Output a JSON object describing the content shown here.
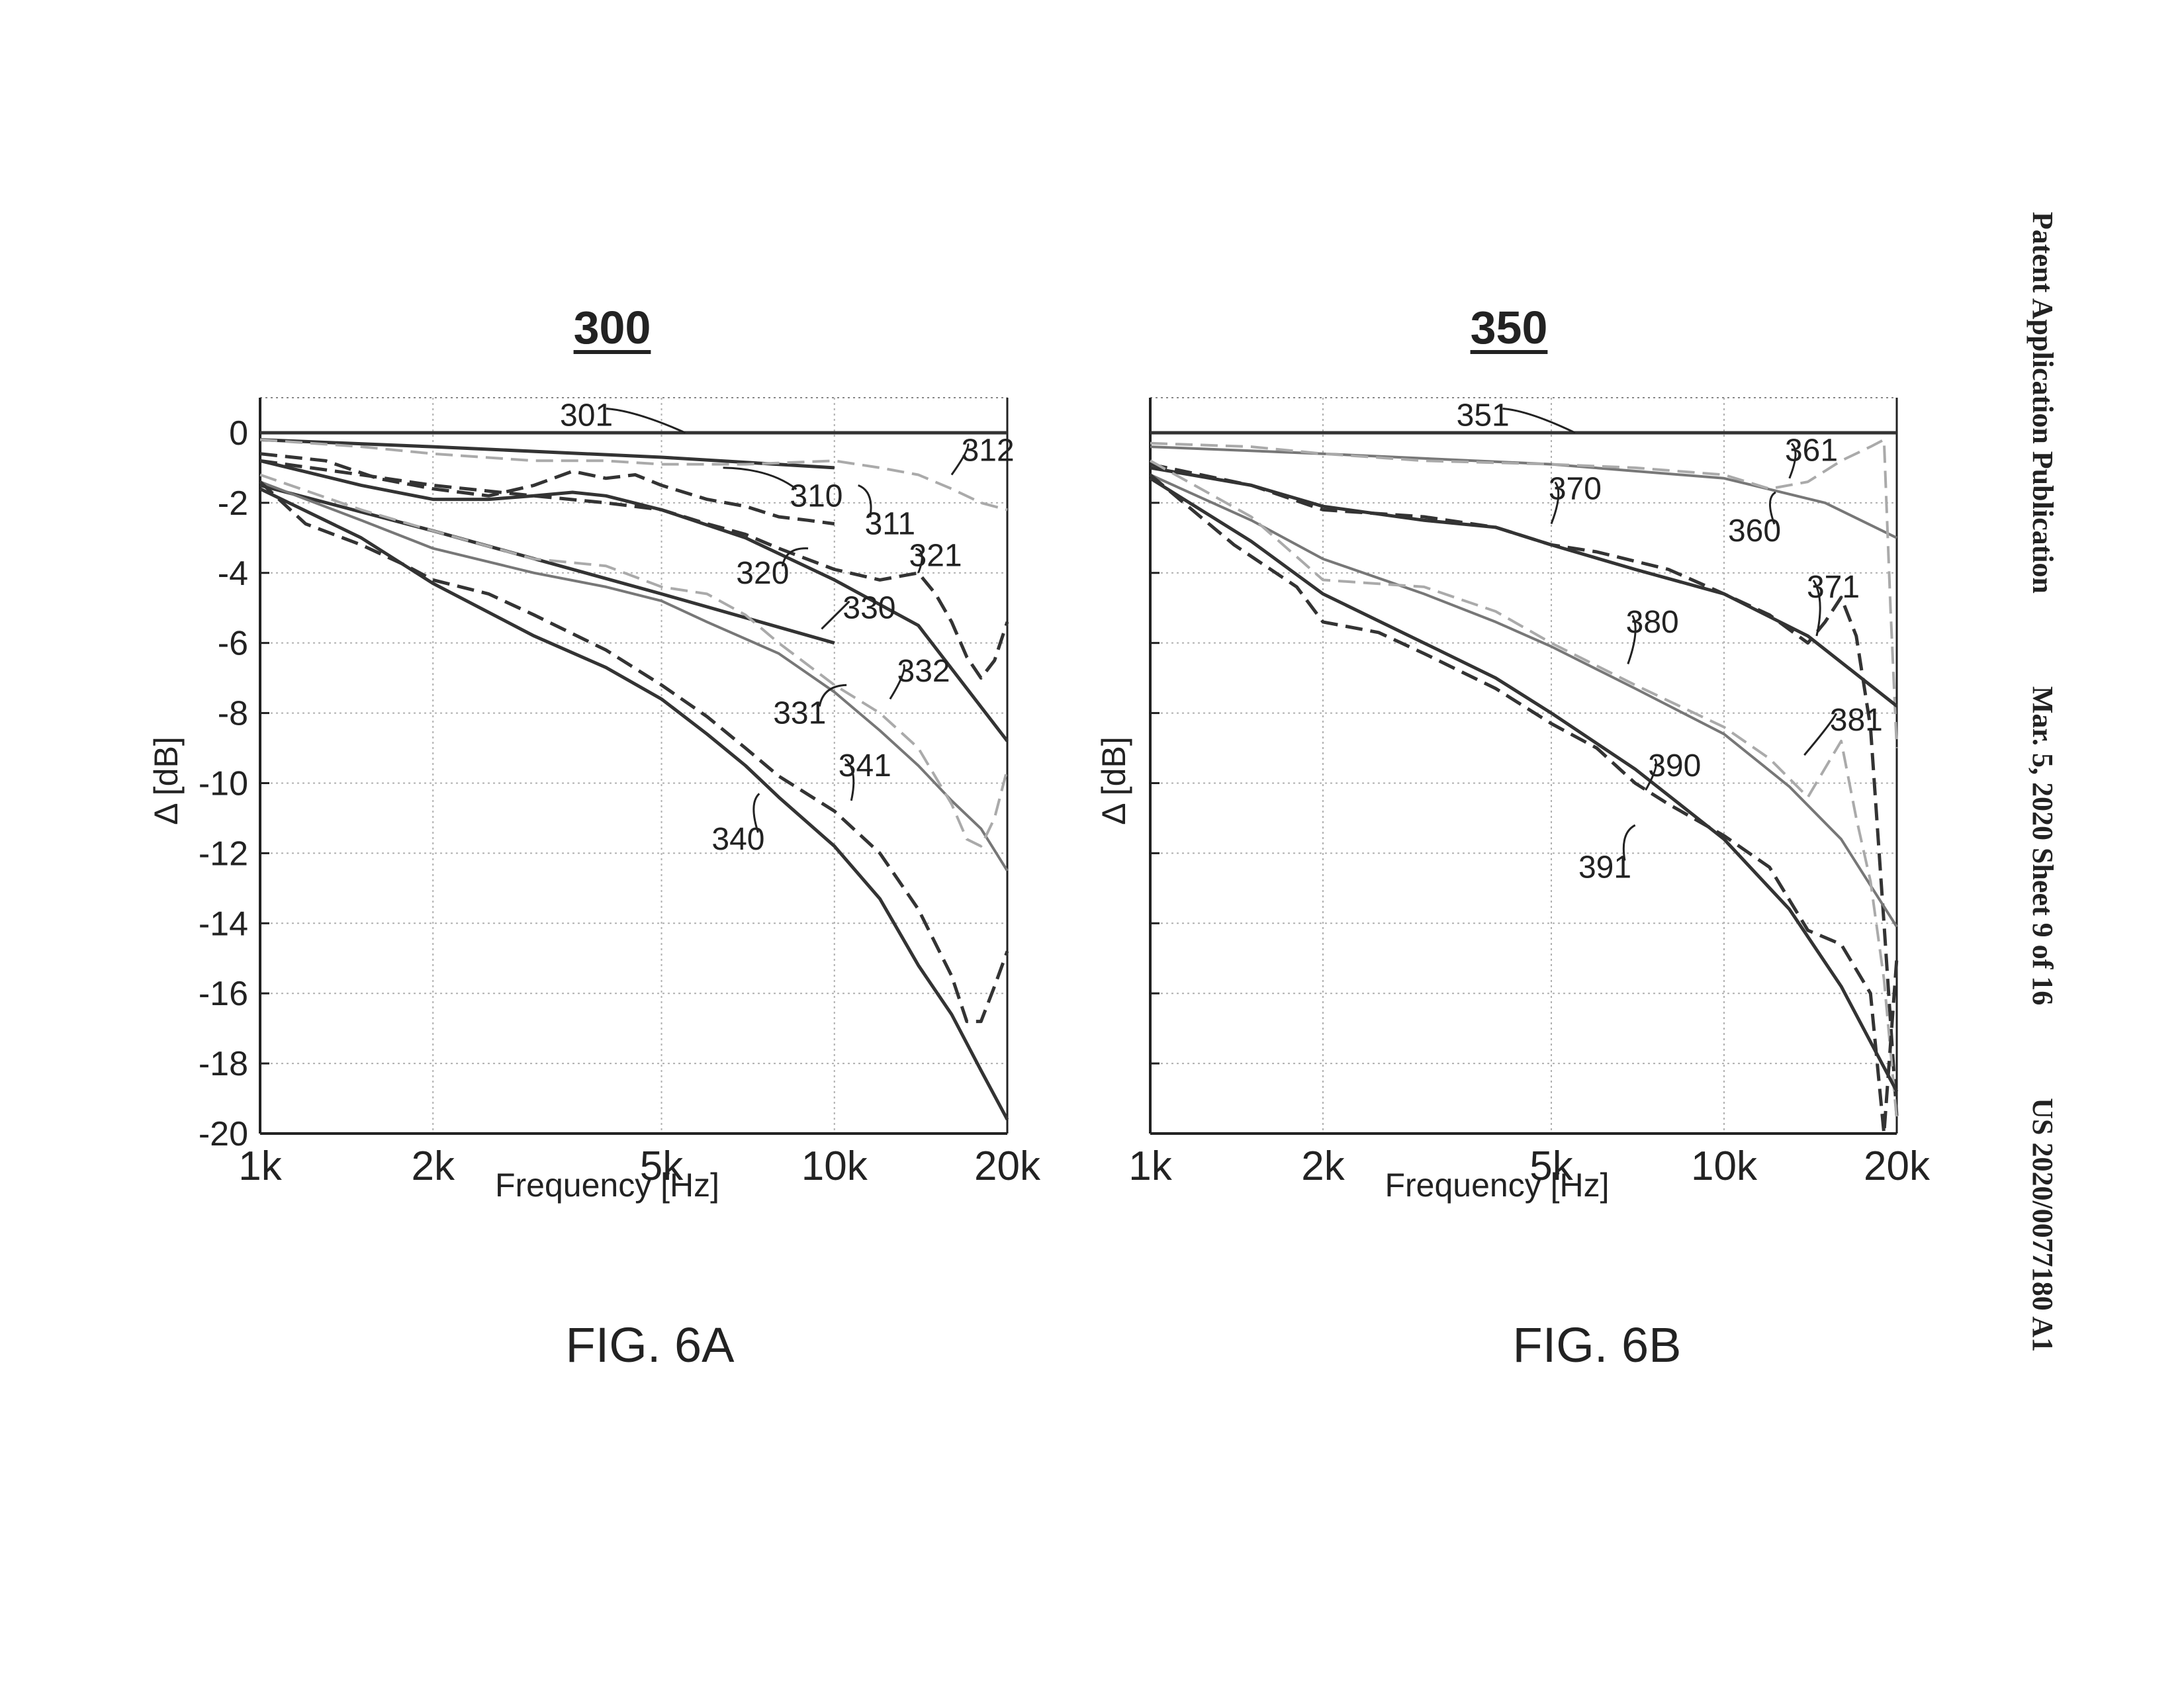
{
  "header": {
    "publication": "Patent Application Publication",
    "date_sheet": "Mar. 5, 2020  Sheet 9 of 16",
    "number": "US 2020/0077180 A1"
  },
  "figures": [
    {
      "number": "300",
      "caption": "FIG. 6A"
    },
    {
      "number": "350",
      "caption": "FIG. 6B"
    }
  ],
  "colors": {
    "dark": "#333333",
    "mid": "#777777",
    "light": "#aaaaaa",
    "grid": "#b0b0b0"
  },
  "chart_data": [
    {
      "type": "line",
      "figure": "300",
      "xlabel": "Frequency [Hz]",
      "ylabel": "Δ [dB]",
      "xscale": "log",
      "xlim": [
        1000,
        20000
      ],
      "ylim": [
        -20,
        1
      ],
      "xticks": [
        1000,
        2000,
        5000,
        10000,
        20000
      ],
      "xticklabels": [
        "1k",
        "2k",
        "5k",
        "10k",
        "20k"
      ],
      "yticks": [
        0,
        -2,
        -4,
        -6,
        -8,
        -10,
        -12,
        -14,
        -16,
        -18,
        -20
      ],
      "yticklabels": [
        "0",
        "-2",
        "-4",
        "-6",
        "-8",
        "-10",
        "-12",
        "-14",
        "-16",
        "-18",
        "-20"
      ],
      "grid": true,
      "series": [
        {
          "name": "301",
          "style": "solid",
          "tone": "dark",
          "x": [
            1000,
            20000
          ],
          "y": [
            0,
            0
          ]
        },
        {
          "name": "310",
          "style": "solid",
          "tone": "dark",
          "x": [
            1000,
            2000,
            5000,
            10000
          ],
          "y": [
            -0.2,
            -0.4,
            -0.7,
            -1.0
          ]
        },
        {
          "name": "311",
          "style": "dashed",
          "tone": "dark",
          "x": [
            1000,
            1300,
            1600,
            2000,
            2500,
            3000,
            3500,
            4000,
            4500,
            5000,
            6000,
            7000,
            8000,
            9000,
            10000
          ],
          "y": [
            -0.6,
            -0.8,
            -1.3,
            -1.6,
            -1.8,
            -1.5,
            -1.1,
            -1.3,
            -1.2,
            -1.5,
            -1.9,
            -2.1,
            -2.4,
            -2.5,
            -2.6
          ]
        },
        {
          "name": "312",
          "style": "dashed",
          "tone": "light",
          "x": [
            1000,
            1500,
            2000,
            3000,
            4000,
            5000,
            7000,
            10000,
            12000,
            14000,
            16000,
            18000,
            20000
          ],
          "y": [
            -0.2,
            -0.4,
            -0.6,
            -0.8,
            -0.8,
            -0.9,
            -0.9,
            -0.8,
            -1.0,
            -1.2,
            -1.6,
            -2.0,
            -2.2
          ]
        },
        {
          "name": "320",
          "style": "solid",
          "tone": "dark",
          "x": [
            1000,
            1500,
            2000,
            2500,
            3000,
            3500,
            4000,
            5000,
            7000,
            10000,
            14000,
            20000
          ],
          "y": [
            -0.8,
            -1.5,
            -1.9,
            -1.9,
            -1.8,
            -1.7,
            -1.8,
            -2.2,
            -3.0,
            -4.2,
            -5.5,
            -8.8
          ]
        },
        {
          "name": "321",
          "style": "dashed",
          "tone": "dark",
          "x": [
            1000,
            1500,
            2000,
            3000,
            4000,
            5000,
            6000,
            7000,
            8000,
            10000,
            12000,
            14000,
            15000,
            16000,
            17000,
            18000,
            19000,
            20000
          ],
          "y": [
            -0.8,
            -1.2,
            -1.5,
            -1.8,
            -2.0,
            -2.2,
            -2.6,
            -2.9,
            -3.3,
            -3.9,
            -4.2,
            -4.0,
            -4.6,
            -5.4,
            -6.4,
            -7.0,
            -6.5,
            -5.4
          ]
        },
        {
          "name": "330",
          "style": "solid",
          "tone": "dark",
          "x": [
            1000,
            2000,
            5000,
            10000
          ],
          "y": [
            -1.5,
            -2.8,
            -4.6,
            -6.0
          ]
        },
        {
          "name": "331",
          "style": "solid",
          "tone": "mid",
          "x": [
            1000,
            1500,
            2000,
            3000,
            4000,
            5000,
            6000,
            8000,
            10000,
            12000,
            14000,
            16000,
            18000,
            20000
          ],
          "y": [
            -1.4,
            -2.5,
            -3.3,
            -4.0,
            -4.4,
            -4.8,
            -5.4,
            -6.3,
            -7.4,
            -8.5,
            -9.5,
            -10.5,
            -11.3,
            -12.5
          ]
        },
        {
          "name": "332",
          "style": "dashed",
          "tone": "light",
          "x": [
            1000,
            1500,
            2000,
            3000,
            4000,
            5000,
            6000,
            7000,
            8000,
            10000,
            12000,
            14000,
            16000,
            17000,
            18000,
            19000,
            20000
          ],
          "y": [
            -1.2,
            -2.2,
            -2.8,
            -3.6,
            -3.8,
            -4.4,
            -4.6,
            -5.2,
            -6.0,
            -7.2,
            -8.0,
            -9.0,
            -10.6,
            -11.6,
            -11.8,
            -11.0,
            -9.6
          ]
        },
        {
          "name": "340",
          "style": "solid",
          "tone": "dark",
          "x": [
            1000,
            1500,
            2000,
            3000,
            4000,
            5000,
            6000,
            7000,
            8000,
            10000,
            12000,
            14000,
            16000,
            18000,
            20000
          ],
          "y": [
            -1.6,
            -3.0,
            -4.3,
            -5.8,
            -6.7,
            -7.6,
            -8.6,
            -9.5,
            -10.4,
            -11.8,
            -13.3,
            -15.2,
            -16.6,
            -18.2,
            -19.6
          ]
        },
        {
          "name": "341",
          "style": "dashed",
          "tone": "dark",
          "x": [
            1000,
            1200,
            1500,
            1800,
            2000,
            2500,
            3000,
            4000,
            5000,
            6000,
            7000,
            8000,
            10000,
            12000,
            14000,
            16000,
            17000,
            18000,
            19000,
            20000
          ],
          "y": [
            -1.4,
            -2.6,
            -3.2,
            -3.8,
            -4.2,
            -4.6,
            -5.2,
            -6.2,
            -7.2,
            -8.1,
            -9.0,
            -9.8,
            -10.8,
            -12.0,
            -13.6,
            -15.5,
            -16.8,
            -16.8,
            -15.8,
            -14.8
          ]
        }
      ],
      "callouts": [
        {
          "label": "301",
          "x": 3700,
          "y": 0.5,
          "tx": 5500,
          "ty": 0
        },
        {
          "label": "310",
          "x": 9300,
          "y": -1.8,
          "tx": 6400,
          "ty": -1.0
        },
        {
          "label": "311",
          "x": 12500,
          "y": -2.6,
          "tx": 11000,
          "ty": -1.5
        },
        {
          "label": "312",
          "x": 18500,
          "y": -0.5,
          "tx": 16000,
          "ty": -1.2
        },
        {
          "label": "320",
          "x": 7500,
          "y": -4.0,
          "tx": 9000,
          "ty": -3.3
        },
        {
          "label": "321",
          "x": 15000,
          "y": -3.5,
          "tx": 14000,
          "ty": -4.0
        },
        {
          "label": "330",
          "x": 11500,
          "y": -5.0,
          "tx": 9500,
          "ty": -5.6
        },
        {
          "label": "331",
          "x": 8700,
          "y": -8.0,
          "tx": 10500,
          "ty": -7.2
        },
        {
          "label": "332",
          "x": 14300,
          "y": -6.8,
          "tx": 12500,
          "ty": -7.6
        },
        {
          "label": "341",
          "x": 11300,
          "y": -9.5,
          "tx": 10700,
          "ty": -10.5
        },
        {
          "label": "340",
          "x": 6800,
          "y": -11.6,
          "tx": 7400,
          "ty": -10.3
        }
      ]
    },
    {
      "type": "line",
      "figure": "350",
      "xlabel": "Frequency [Hz]",
      "ylabel": "Δ [dB]",
      "xscale": "log",
      "xlim": [
        1000,
        20000
      ],
      "ylim": [
        -20,
        1
      ],
      "xticks": [
        1000,
        2000,
        5000,
        10000,
        20000
      ],
      "xticklabels": [
        "1k",
        "2k",
        "5k",
        "10k",
        "20k"
      ],
      "yticks": [
        0,
        -2,
        -4,
        -6,
        -8,
        -10,
        -12,
        -14,
        -16,
        -18,
        -20
      ],
      "yticklabels": [],
      "grid": true,
      "series": [
        {
          "name": "351",
          "style": "solid",
          "tone": "dark",
          "x": [
            1000,
            20000
          ],
          "y": [
            0,
            0
          ]
        },
        {
          "name": "360",
          "style": "solid",
          "tone": "mid",
          "x": [
            1000,
            2000,
            5000,
            10000,
            15000,
            20000
          ],
          "y": [
            -0.4,
            -0.6,
            -0.9,
            -1.3,
            -2.0,
            -3.0
          ]
        },
        {
          "name": "361",
          "style": "dashed",
          "tone": "light",
          "x": [
            1000,
            1500,
            2000,
            3000,
            5000,
            7000,
            10000,
            12000,
            14000,
            16000,
            18000,
            19000,
            19500,
            20000
          ],
          "y": [
            -0.3,
            -0.4,
            -0.6,
            -0.8,
            -0.9,
            -1.0,
            -1.2,
            -1.6,
            -1.4,
            -0.8,
            -0.4,
            -0.2,
            -5.0,
            -9.0
          ]
        },
        {
          "name": "370",
          "style": "solid",
          "tone": "dark",
          "x": [
            1000,
            1500,
            2000,
            3000,
            4000,
            5000,
            7000,
            10000,
            14000,
            20000
          ],
          "y": [
            -1.0,
            -1.5,
            -2.1,
            -2.5,
            -2.7,
            -3.2,
            -3.9,
            -4.6,
            -5.8,
            -7.8
          ]
        },
        {
          "name": "371",
          "style": "dashed",
          "tone": "dark",
          "x": [
            1000,
            1500,
            2000,
            3000,
            4000,
            5000,
            6000,
            8000,
            10000,
            12000,
            14000,
            15000,
            16000,
            17000,
            18000,
            19000,
            20000
          ],
          "y": [
            -0.9,
            -1.5,
            -2.2,
            -2.4,
            -2.7,
            -3.2,
            -3.4,
            -3.9,
            -4.6,
            -5.2,
            -6.0,
            -5.4,
            -4.7,
            -5.8,
            -8.4,
            -14.0,
            -19.5
          ]
        },
        {
          "name": "380",
          "style": "solid",
          "tone": "mid",
          "x": [
            1000,
            1500,
            2000,
            3000,
            4000,
            5000,
            7000,
            10000,
            13000,
            16000,
            20000
          ],
          "y": [
            -1.2,
            -2.5,
            -3.6,
            -4.6,
            -5.4,
            -6.1,
            -7.3,
            -8.6,
            -10.1,
            -11.6,
            -14.1
          ]
        },
        {
          "name": "381",
          "style": "dashed",
          "tone": "light",
          "x": [
            1000,
            1500,
            2000,
            3000,
            4000,
            5000,
            7000,
            10000,
            12000,
            14000,
            16000,
            17000,
            18000,
            19000,
            20000
          ],
          "y": [
            -0.8,
            -2.4,
            -4.2,
            -4.4,
            -5.1,
            -6.0,
            -7.2,
            -8.4,
            -9.3,
            -10.4,
            -8.8,
            -11.0,
            -12.8,
            -15.6,
            -19.6
          ]
        },
        {
          "name": "390",
          "style": "solid",
          "tone": "dark",
          "x": [
            1000,
            1500,
            2000,
            3000,
            4000,
            5000,
            7000,
            10000,
            13000,
            16000,
            20000
          ],
          "y": [
            -1.3,
            -3.1,
            -4.6,
            -6.0,
            -7.0,
            -8.0,
            -9.6,
            -11.6,
            -13.6,
            -15.8,
            -18.8
          ]
        },
        {
          "name": "391",
          "style": "dashed",
          "tone": "dark",
          "x": [
            1000,
            1400,
            1800,
            2000,
            2500,
            3000,
            4000,
            5000,
            6000,
            7000,
            8000,
            10000,
            12000,
            14000,
            16000,
            18000,
            19000,
            20000
          ],
          "y": [
            -1.2,
            -3.2,
            -4.4,
            -5.4,
            -5.7,
            -6.3,
            -7.3,
            -8.3,
            -9.0,
            -10.0,
            -10.6,
            -11.5,
            -12.4,
            -14.2,
            -14.6,
            -16.0,
            -20.0,
            -15.0
          ]
        }
      ],
      "callouts": [
        {
          "label": "351",
          "x": 3800,
          "y": 0.5,
          "tx": 5500,
          "ty": 0
        },
        {
          "label": "361",
          "x": 14200,
          "y": -0.5,
          "tx": 13000,
          "ty": -1.3
        },
        {
          "label": "360",
          "x": 11300,
          "y": -2.8,
          "tx": 12300,
          "ty": -1.7
        },
        {
          "label": "370",
          "x": 5500,
          "y": -1.6,
          "tx": 5000,
          "ty": -2.6
        },
        {
          "label": "371",
          "x": 15500,
          "y": -4.4,
          "tx": 14500,
          "ty": -5.8
        },
        {
          "label": "380",
          "x": 7500,
          "y": -5.4,
          "tx": 6800,
          "ty": -6.6
        },
        {
          "label": "381",
          "x": 17000,
          "y": -8.2,
          "tx": 13800,
          "ty": -9.2
        },
        {
          "label": "390",
          "x": 8200,
          "y": -9.5,
          "tx": 7300,
          "ty": -10.2
        },
        {
          "label": "391",
          "x": 6200,
          "y": -12.4,
          "tx": 7000,
          "ty": -11.2
        }
      ]
    }
  ]
}
